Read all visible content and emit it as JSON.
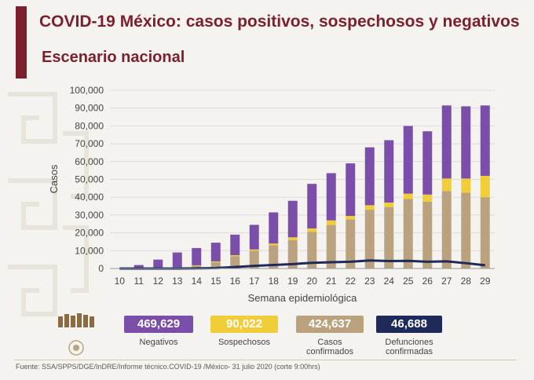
{
  "header": {
    "title": "COVID-19 México: casos positivos, sospechosos y negativos",
    "subtitle": "Escenario nacional"
  },
  "colors": {
    "accent": "#7a1f2b",
    "negativos": "#7b4fa9",
    "sospechosos": "#f2cd3a",
    "confirmados": "#bba27f",
    "defunciones": "#1e2b5a"
  },
  "chart_data": {
    "type": "bar",
    "stacked": true,
    "xlabel": "Semana epidemiológica",
    "ylabel": "Casos",
    "ylim": [
      0,
      100000
    ],
    "yticks": [
      "0",
      "10,000",
      "20,000",
      "30,000",
      "40,000",
      "50,000",
      "60,000",
      "70,000",
      "80,000",
      "90,000",
      "100,000"
    ],
    "grid": true,
    "categories": [
      "10",
      "11",
      "12",
      "13",
      "14",
      "15",
      "16",
      "17",
      "18",
      "19",
      "20",
      "21",
      "22",
      "23",
      "24",
      "25",
      "26",
      "27",
      "28",
      "29"
    ],
    "series": [
      {
        "name": "Casos confirmados",
        "type": "bar",
        "color": "#bba27f",
        "values": [
          0,
          100,
          300,
          500,
          1500,
          3500,
          7000,
          10000,
          13000,
          16000,
          20500,
          24500,
          27500,
          33000,
          34500,
          39000,
          37500,
          43500,
          42500,
          40000
        ]
      },
      {
        "name": "Sospechosos",
        "type": "bar",
        "color": "#f2cd3a",
        "values": [
          0,
          50,
          100,
          200,
          300,
          500,
          500,
          700,
          1000,
          1500,
          2000,
          2500,
          2000,
          2500,
          2500,
          3000,
          4000,
          7000,
          8000,
          12000
        ]
      },
      {
        "name": "Negativos",
        "type": "bar",
        "color": "#7b4fa9",
        "values": [
          0,
          1800,
          4600,
          8300,
          9700,
          10500,
          11500,
          13800,
          17500,
          20500,
          25000,
          26500,
          29500,
          32500,
          35000,
          38000,
          35500,
          41000,
          40500,
          39500
        ]
      },
      {
        "name": "Defunciones confirmadas",
        "type": "line",
        "color": "#1e2b5a",
        "values": [
          0,
          0,
          0,
          0,
          100,
          300,
          800,
          1500,
          2000,
          2500,
          3200,
          3500,
          3800,
          4500,
          4200,
          4300,
          3800,
          4000,
          3000,
          1800
        ]
      }
    ]
  },
  "totals": [
    {
      "value": "469,629",
      "label": "Negativos",
      "color": "#7b4fa9",
      "text_color": "#ffffff"
    },
    {
      "value": "90,022",
      "label": "Sospechosos",
      "color": "#f2cd3a",
      "text_color": "#ffffff"
    },
    {
      "value": "424,637",
      "label": "Casos confirmados",
      "color": "#bba27f",
      "text_color": "#ffffff"
    },
    {
      "value": "46,688",
      "label": "Defunciones confirmadas",
      "color": "#1e2b5a",
      "text_color": "#ffffff"
    }
  ],
  "footer": {
    "source": "Fuente: SSA/SPPS/DGE/InDRE/Informe técnico.COVID-19 /México- 31 julio 2020 (corte 9:00hrs)"
  }
}
